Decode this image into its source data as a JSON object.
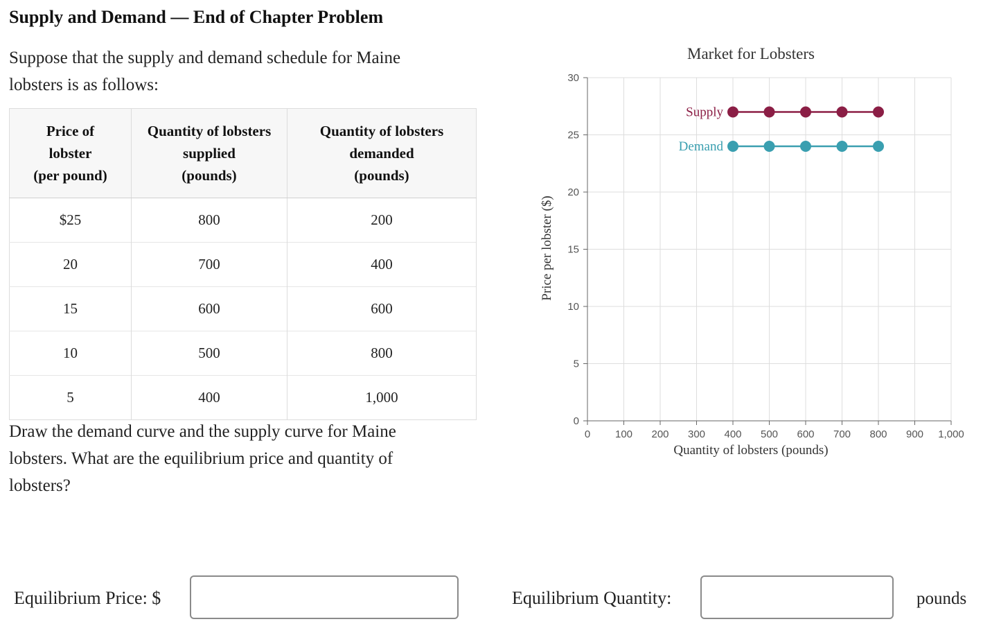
{
  "header": {
    "title": "Supply and Demand — End of Chapter Problem",
    "intro": "Suppose that the supply and demand schedule for Maine lobsters is as follows:"
  },
  "table": {
    "columns": [
      "Price of lobster (per pound)",
      "Quantity of lobsters supplied (pounds)",
      "Quantity of lobsters demanded (pounds)"
    ],
    "column_lines": [
      [
        "Price of",
        "lobster",
        "(per pound)"
      ],
      [
        "Quantity of lobsters",
        "supplied",
        "(pounds)"
      ],
      [
        "Quantity of lobsters",
        "demanded",
        "(pounds)"
      ]
    ],
    "rows": [
      [
        "$25",
        "800",
        "200"
      ],
      [
        "20",
        "700",
        "400"
      ],
      [
        "15",
        "600",
        "600"
      ],
      [
        "10",
        "500",
        "800"
      ],
      [
        "5",
        "400",
        "1,000"
      ]
    ]
  },
  "prompt": "Draw the demand curve and the supply curve for Maine lobsters. What are the equilibrium price and quantity of lobsters?",
  "answers": {
    "price_label": "Equilibrium Price: $",
    "price_value": "",
    "quantity_label": "Equilibrium Quantity:",
    "quantity_value": "",
    "quantity_unit": "pounds"
  },
  "chart_data": {
    "type": "line",
    "title": "Market for Lobsters",
    "xlabel": "Quantity of lobsters (pounds)",
    "ylabel": "Price per lobster ($)",
    "xlim": [
      0,
      1000
    ],
    "ylim": [
      0,
      30
    ],
    "xticks": [
      0,
      100,
      200,
      300,
      400,
      500,
      600,
      700,
      800,
      900,
      1000
    ],
    "xtick_labels": [
      "0",
      "100",
      "200",
      "300",
      "400",
      "500",
      "600",
      "700",
      "800",
      "900",
      "1,000"
    ],
    "yticks": [
      0,
      5,
      10,
      15,
      20,
      25,
      30
    ],
    "ytick_labels": [
      "0",
      "5",
      "10",
      "15",
      "20",
      "25",
      "30"
    ],
    "grid": true,
    "series": [
      {
        "name": "Supply",
        "color": "#8b1e45",
        "x": [
          400,
          500,
          600,
          700,
          800
        ],
        "y": [
          27,
          27,
          27,
          27,
          27
        ]
      },
      {
        "name": "Demand",
        "color": "#3a9fb0",
        "x": [
          400,
          500,
          600,
          700,
          800
        ],
        "y": [
          24,
          24,
          24,
          24,
          24
        ]
      }
    ]
  }
}
